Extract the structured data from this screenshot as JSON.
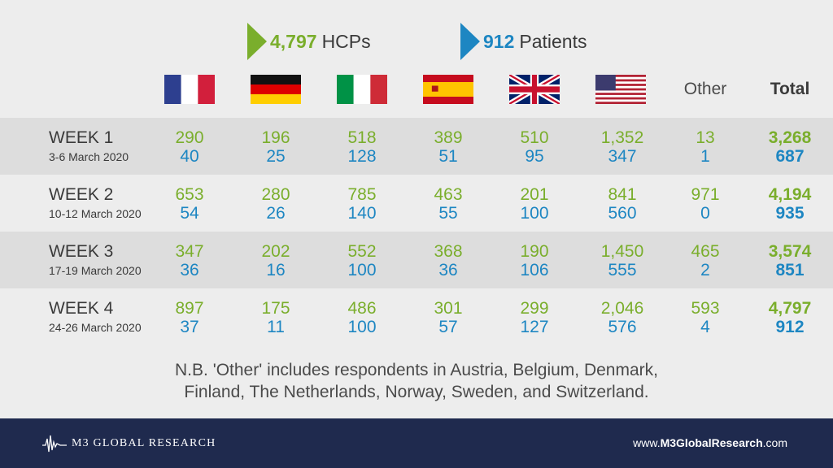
{
  "legend": {
    "hcp": {
      "count": "4,797",
      "unit": "HCPs",
      "color": "#7aae2c"
    },
    "patients": {
      "count": "912",
      "unit": "Patients",
      "color": "#1d86c2"
    }
  },
  "columns": [
    {
      "key": "france",
      "flag": "france-flag"
    },
    {
      "key": "germany",
      "flag": "germany-flag"
    },
    {
      "key": "italy",
      "flag": "italy-flag"
    },
    {
      "key": "spain",
      "flag": "spain-flag"
    },
    {
      "key": "uk",
      "flag": "uk-flag"
    },
    {
      "key": "usa",
      "flag": "usa-flag"
    },
    {
      "key": "other",
      "label": "Other"
    },
    {
      "key": "total",
      "label": "Total"
    }
  ],
  "chart_data": {
    "type": "table",
    "series": [
      {
        "name": "HCPs",
        "color": "#7aae2c"
      },
      {
        "name": "Patients",
        "color": "#1d86c2"
      }
    ],
    "rows": [
      {
        "week": "WEEK 1",
        "dates": "3-6 March 2020",
        "hcp": [
          "290",
          "196",
          "518",
          "389",
          "510",
          "1,352",
          "13",
          "3,268"
        ],
        "patients": [
          "40",
          "25",
          "128",
          "51",
          "95",
          "347",
          "1",
          "687"
        ]
      },
      {
        "week": "WEEK 2",
        "dates": "10-12 March 2020",
        "hcp": [
          "653",
          "280",
          "785",
          "463",
          "201",
          "841",
          "971",
          "4,194"
        ],
        "patients": [
          "54",
          "26",
          "140",
          "55",
          "100",
          "560",
          "0",
          "935"
        ]
      },
      {
        "week": "WEEK 3",
        "dates": "17-19 March 2020",
        "hcp": [
          "347",
          "202",
          "552",
          "368",
          "190",
          "1,450",
          "465",
          "3,574"
        ],
        "patients": [
          "36",
          "16",
          "100",
          "36",
          "106",
          "555",
          "2",
          "851"
        ]
      },
      {
        "week": "WEEK 4",
        "dates": "24-26 March 2020",
        "hcp": [
          "897",
          "175",
          "486",
          "301",
          "299",
          "2,046",
          "593",
          "4,797"
        ],
        "patients": [
          "37",
          "11",
          "100",
          "57",
          "127",
          "576",
          "4",
          "912"
        ]
      }
    ]
  },
  "note": {
    "line1": "N.B. 'Other' includes respondents in Austria, Belgium, Denmark,",
    "line2": "Finland, The Netherlands, Norway, Sweden, and Switzerland."
  },
  "footer": {
    "logo_text": "M3  GLOBAL RESEARCH",
    "url_prefix": "www.",
    "url_bold": "M3GlobalResearch",
    "url_suffix": ".com",
    "background": "#1f2a4e"
  }
}
